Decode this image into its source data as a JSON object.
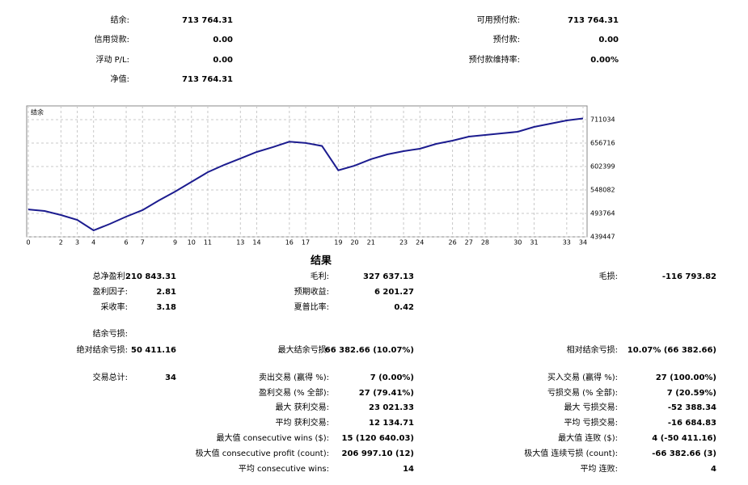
{
  "summary": {
    "rows": [
      [
        {
          "label": "结余:",
          "value": "713 764.31"
        },
        {
          "label": "可用预付款:",
          "value": "713 764.31"
        }
      ],
      [
        {
          "label": "信用贷款:",
          "value": "0.00"
        },
        {
          "label": "预付款:",
          "value": "0.00"
        }
      ],
      [
        {
          "label": "浮动 P/L:",
          "value": "0.00"
        },
        {
          "label": "预付款维持率:",
          "value": "0.00%"
        }
      ],
      [
        {
          "label": "净值:",
          "value": "713 764.31"
        }
      ]
    ]
  },
  "chart_data": {
    "type": "line",
    "title": "结余",
    "x": [
      0,
      1,
      2,
      3,
      4,
      5,
      6,
      7,
      8,
      9,
      10,
      11,
      12,
      13,
      14,
      15,
      16,
      17,
      18,
      19,
      20,
      21,
      22,
      23,
      24,
      25,
      26,
      27,
      28,
      29,
      30,
      31,
      32,
      33,
      34
    ],
    "values": [
      502921,
      499400,
      490000,
      478800,
      454400,
      469400,
      486300,
      501300,
      523700,
      544300,
      566800,
      589300,
      606100,
      621100,
      636100,
      647400,
      660000,
      657000,
      650000,
      593600,
      604300,
      619300,
      630500,
      638000,
      643600,
      654800,
      662300,
      671700,
      675400,
      679200,
      682900,
      694200,
      701700,
      709200,
      713764
    ],
    "xlim": [
      0,
      34
    ],
    "ylim": [
      439447,
      742873
    ],
    "xticks": [
      0,
      2,
      3,
      4,
      6,
      7,
      9,
      10,
      11,
      13,
      14,
      16,
      17,
      19,
      20,
      21,
      23,
      24,
      26,
      27,
      28,
      30,
      31,
      33,
      34
    ],
    "yticks": [
      711034,
      656716,
      602399,
      548082,
      493764,
      439447
    ],
    "color": "#1c1c8f",
    "grid": true
  },
  "results": {
    "title": "结果",
    "rows": [
      [
        {
          "label": "总净盈利:",
          "value": "210 843.31"
        },
        {
          "label": "毛利:",
          "value": "327 637.13"
        },
        {
          "label": "毛损:",
          "value": "-116 793.82"
        }
      ],
      [
        {
          "label": "盈利因子:",
          "value": "2.81"
        },
        {
          "label": "预期收益:",
          "value": "6 201.27"
        },
        null
      ],
      [
        {
          "label": "采收率:",
          "value": "3.18"
        },
        {
          "label": "夏普比率:",
          "value": "0.42"
        },
        null
      ],
      [
        {
          "label": "结余亏损:"
        },
        null,
        null
      ],
      [
        {
          "label": "绝对结余亏损:",
          "value": "50 411.16"
        },
        {
          "label": "最大结余亏损:",
          "value": "66 382.66 (10.07%)"
        },
        {
          "label": "相对结余亏损:",
          "value": "10.07% (66 382.66)"
        }
      ],
      [
        {
          "label": "交易总计:",
          "value": "34"
        },
        {
          "label": "卖出交易 (赢得 %):",
          "value": "7 (0.00%)"
        },
        {
          "label": "买入交易 (赢得 %):",
          "value": "27 (100.00%)"
        }
      ],
      [
        null,
        {
          "label": "盈利交易 (% 全部):",
          "value": "27 (79.41%)"
        },
        {
          "label": "亏损交易 (% 全部):",
          "value": "7 (20.59%)"
        }
      ],
      [
        null,
        {
          "label": "最大 获利交易:",
          "value": "23 021.33"
        },
        {
          "label": "最大 亏损交易:",
          "value": "-52 388.34"
        }
      ],
      [
        null,
        {
          "label": "平均 获利交易:",
          "value": "12 134.71"
        },
        {
          "label": "平均 亏损交易:",
          "value": "-16 684.83"
        }
      ],
      [
        null,
        {
          "label": "最大值 consecutive wins ($):",
          "value": "15 (120 640.03)"
        },
        {
          "label": "最大值 连败 ($):",
          "value": "4 (-50 411.16)"
        }
      ],
      [
        null,
        {
          "label": "极大值 consecutive profit (count):",
          "value": "206 997.10 (12)"
        },
        {
          "label": "极大值 连续亏损 (count):",
          "value": "-66 382.66 (3)"
        }
      ],
      [
        null,
        {
          "label": "平均 consecutive wins:",
          "value": "14"
        },
        {
          "label": "平均 连败:",
          "value": "4"
        }
      ]
    ]
  }
}
